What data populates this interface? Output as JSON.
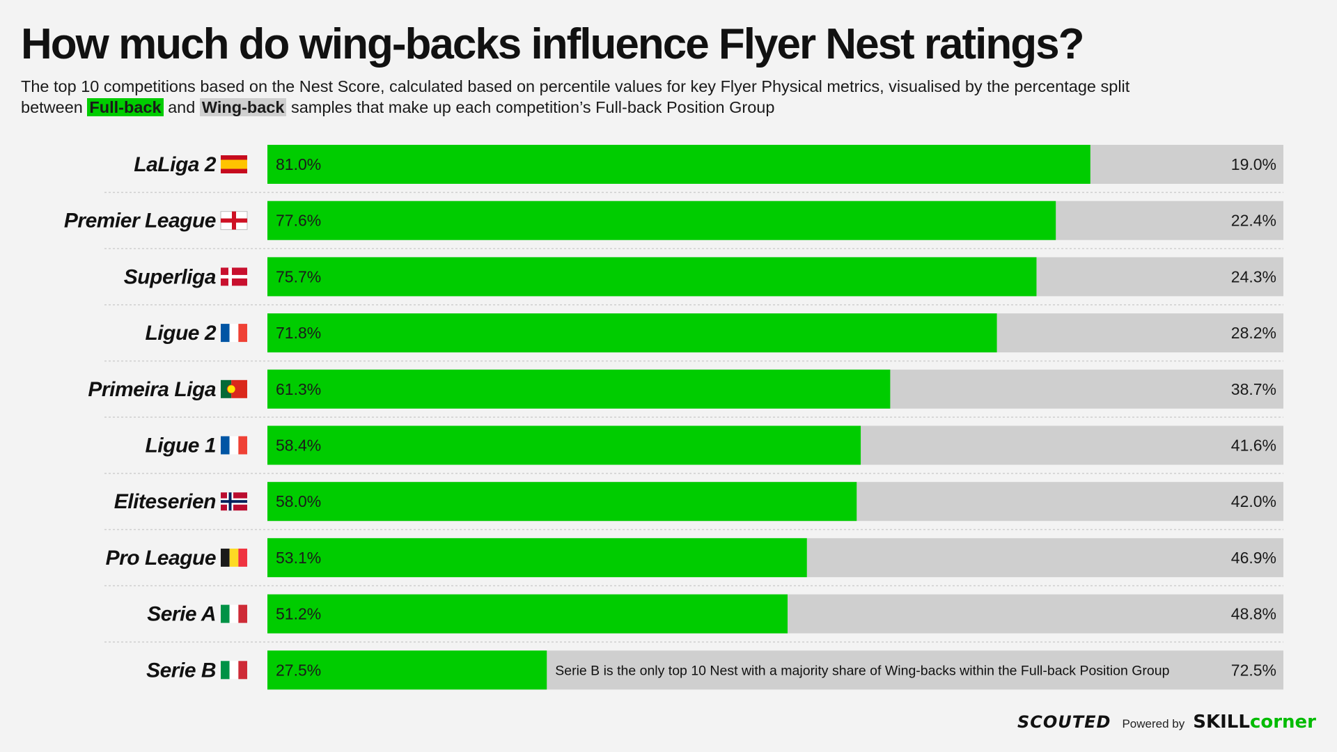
{
  "title": "How much do wing-backs influence Flyer Nest ratings?",
  "subtitle": {
    "line1": "The top 10 competitions based on the Nest Score, calculated based on percentile values for key Flyer Physical metrics, visualised by the percentage split",
    "between": "between",
    "fullback_label": "Full-back",
    "and": "and",
    "wingback_label": "Wing-back",
    "rest": "samples that make up each competition’s Full-back Position Group"
  },
  "colors": {
    "fullback": "#00cc00",
    "wingback": "#cfcfcf",
    "background": "#f3f3f3"
  },
  "chart_data": {
    "type": "bar",
    "orientation": "horizontal",
    "stacked": true,
    "categories": [
      "LaLiga 2",
      "Premier League",
      "Superliga",
      "Ligue 2",
      "Primeira Liga",
      "Ligue 1",
      "Eliteserien",
      "Pro League",
      "Serie A",
      "Serie B"
    ],
    "flags": [
      "spain",
      "england",
      "denmark",
      "france",
      "portugal",
      "france",
      "norway",
      "belgium",
      "italy",
      "italy"
    ],
    "series": [
      {
        "name": "Full-back",
        "values": [
          81.0,
          77.6,
          75.7,
          71.8,
          61.3,
          58.4,
          58.0,
          53.1,
          51.2,
          27.5
        ],
        "labels": [
          "81.0%",
          "77.6%",
          "75.7%",
          "71.8%",
          "61.3%",
          "58.4%",
          "58.0%",
          "53.1%",
          "51.2%",
          "27.5%"
        ]
      },
      {
        "name": "Wing-back",
        "values": [
          19.0,
          22.4,
          24.3,
          28.2,
          38.7,
          41.6,
          42.0,
          46.9,
          48.8,
          72.5
        ],
        "labels": [
          "19.0%",
          "22.4%",
          "24.3%",
          "28.2%",
          "38.7%",
          "41.6%",
          "42.0%",
          "46.9%",
          "48.8%",
          "72.5%"
        ]
      }
    ],
    "xlim": [
      0,
      100
    ],
    "annotation": {
      "category": "Serie B",
      "text": "Serie B is the only top 10 Nest with a majority share of Wing-backs within the Full-back Position Group"
    }
  },
  "footer": {
    "brand": "SCOUTED",
    "powered_by": "Powered by",
    "partner_a": "SKILL",
    "partner_b": "corner"
  }
}
